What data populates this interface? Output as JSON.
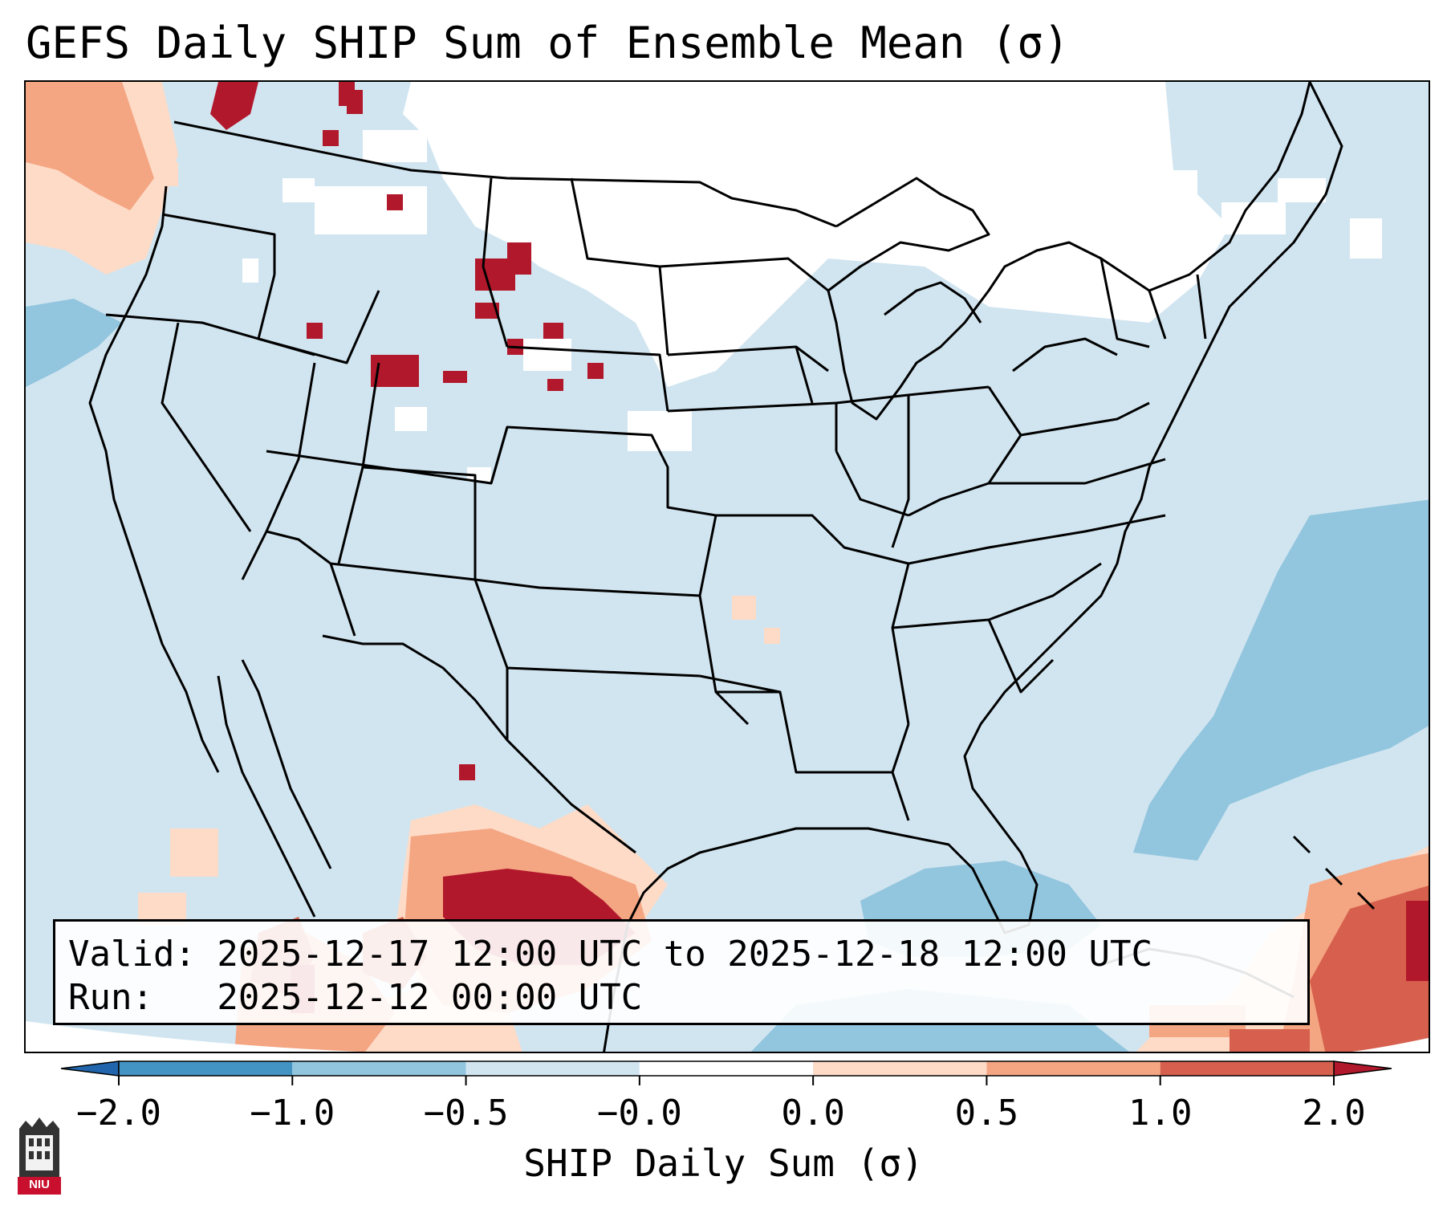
{
  "title": "GEFS Daily SHIP Sum of Ensemble Mean (σ)",
  "info": {
    "valid_line": "Valid: 2025-12-17 12:00 UTC to 2025-12-18 12:00 UTC",
    "run_line": "Run:   2025-12-12 00:00 UTC"
  },
  "colorbar": {
    "label": "SHIP Daily Sum (σ)",
    "ticks": [
      "−2.0",
      "−1.0",
      "−0.5",
      "−0.0",
      "0.0",
      "0.5",
      "1.0",
      "2.0"
    ],
    "bins": [
      {
        "range": "-2.0 to -1.0",
        "color": "#4393c3"
      },
      {
        "range": "-1.0 to -0.5",
        "color": "#92c5de"
      },
      {
        "range": "-0.5 to -0.0",
        "color": "#d1e5f0"
      },
      {
        "range": "-0.0 to 0.0",
        "color": "#ffffff"
      },
      {
        "range": "0.0 to 0.5",
        "color": "#fddbc7"
      },
      {
        "range": "0.5 to 1.0",
        "color": "#f4a582"
      },
      {
        "range": "1.0 to 2.0",
        "color": "#d6604d"
      }
    ],
    "extend_low_color": "#2166ac",
    "extend_high_color": "#b2182b"
  },
  "logo": {
    "text": "NIU",
    "color": "#c8102e"
  },
  "map": {
    "projection": "Lambert conformal, CONUS",
    "background_color": "#d1e5f0",
    "regions": [
      {
        "name": "northern-plains-neutral",
        "category": "-0.0 to 0.0"
      },
      {
        "name": "atlantic-negative",
        "category": "-1.0 to -0.5"
      },
      {
        "name": "gulf-negative",
        "category": "-1.0 to -0.5"
      },
      {
        "name": "pacific-northwest-positive",
        "category": "0.0 to 0.5"
      },
      {
        "name": "texas-mexico-positive",
        "category": "> 2.0"
      },
      {
        "name": "caribbean-positive",
        "category": "1.0 to 2.0"
      },
      {
        "name": "rockies-positive-spots",
        "category": "> 2.0"
      }
    ]
  }
}
